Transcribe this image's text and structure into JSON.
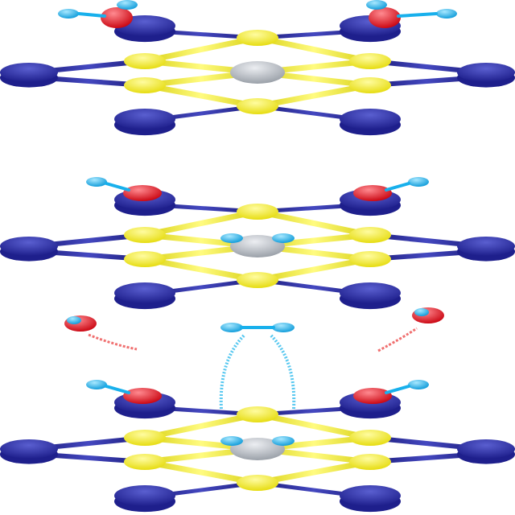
{
  "figure": {
    "panels": [
      {
        "id": "panel-1",
        "adsorbates": [
          "water-left",
          "water-right"
        ]
      },
      {
        "id": "panel-2",
        "adsorbates": [
          "hydroxyl-left",
          "hydroxyl-right",
          "hydrogen-on-metal-left",
          "hydrogen-on-metal-right"
        ]
      },
      {
        "id": "panel-3",
        "adsorbates": [
          "hydroxyl-left",
          "hydroxyl-right",
          "hydrogen-on-metal-left",
          "hydrogen-on-metal-right",
          "desorbed-h2",
          "desorbed-oh-left",
          "desorbed-oh-right"
        ]
      }
    ],
    "atom_legend": {
      "metal_center": "grey",
      "sulfur": "yellow",
      "framework": "navy",
      "oxygen": "red",
      "hydrogen": "light-blue"
    },
    "colors": {
      "framework": "#1e1f8c",
      "framework_highlight": "#5a5fd0",
      "sulfur": "#f2ec2e",
      "sulfur_highlight": "#fffca0",
      "metal": "#b8bcc4",
      "metal_highlight": "#eceef2",
      "oxygen": "#e0101e",
      "oxygen_highlight": "#ff8a90",
      "hydrogen": "#18b0ec",
      "hydrogen_highlight": "#a8e8ff",
      "arrow_red": "#f07070",
      "arrow_blue": "#58c8f0"
    }
  }
}
